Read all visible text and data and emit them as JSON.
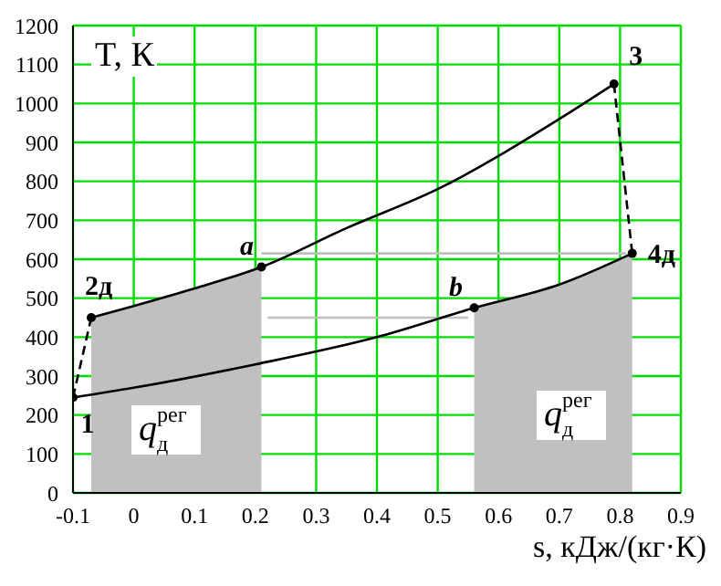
{
  "chart_data": {
    "type": "line",
    "xlabel": "s, кДж/(кг·К)",
    "ylabel": "T, К",
    "xlim": [
      -0.1,
      0.9
    ],
    "xticks": [
      -0.1,
      0,
      0.1,
      0.2,
      0.3,
      0.4,
      0.5,
      0.6,
      0.7,
      0.8,
      0.9
    ],
    "ylim": [
      0,
      1200
    ],
    "yticks": [
      0,
      100,
      200,
      300,
      400,
      500,
      600,
      700,
      800,
      900,
      1000,
      1100,
      1200
    ],
    "grid": true,
    "series": [
      {
        "type": "area",
        "color": "#c0c0c0",
        "x": [
          -0.07,
          0,
          0.1,
          0.21
        ],
        "values": [
          450,
          480,
          525,
          580
        ]
      },
      {
        "type": "area",
        "color": "#c0c0c0",
        "x": [
          0.56,
          0.6,
          0.7,
          0.82
        ],
        "values": [
          475,
          490,
          535,
          615
        ]
      },
      {
        "type": "line",
        "color": "#c0c0c0",
        "line_style": "solid",
        "x": [
          0.21,
          0.81
        ],
        "values": [
          615,
          615
        ]
      },
      {
        "type": "line",
        "color": "#c0c0c0",
        "line_style": "solid",
        "x": [
          0.22,
          0.55
        ],
        "values": [
          450,
          450
        ]
      },
      {
        "color": "#000000",
        "line_style": "solid",
        "x": [
          -0.07,
          0,
          0.1,
          0.21,
          0.35,
          0.5,
          0.7,
          0.79
        ],
        "values": [
          450,
          480,
          525,
          580,
          680,
          780,
          960,
          1050
        ]
      },
      {
        "color": "#000000",
        "line_style": "solid",
        "x": [
          -0.1,
          0,
          0.2,
          0.4,
          0.56,
          0.7,
          0.82
        ],
        "values": [
          245,
          270,
          330,
          400,
          475,
          535,
          615
        ]
      },
      {
        "type": "line",
        "color": "#000000",
        "line_style": "dashed",
        "x": [
          -0.1,
          -0.07
        ],
        "values": [
          245,
          450
        ]
      },
      {
        "type": "line",
        "color": "#000000",
        "line_style": "dashed",
        "x": [
          0.79,
          0.82
        ],
        "values": [
          1050,
          615
        ]
      },
      {
        "type": "scatter",
        "color": "#000000",
        "marker": "circle",
        "x": [
          -0.1,
          -0.07,
          0.21,
          0.79,
          0.82,
          0.56
        ],
        "values": [
          245,
          450,
          580,
          1050,
          615,
          475
        ]
      }
    ],
    "annotations": [
      {
        "text": "1",
        "x": -0.1,
        "y": 245
      },
      {
        "text": "2д",
        "x": -0.07,
        "y": 450
      },
      {
        "text": "a",
        "x": 0.21,
        "y": 580
      },
      {
        "text": "3",
        "x": 0.79,
        "y": 1050
      },
      {
        "text": "4д",
        "x": 0.82,
        "y": 615
      },
      {
        "text": "b",
        "x": 0.56,
        "y": 475
      },
      "q$^{рег}$$_{д}$",
      "q$^{рег}$$_{д}$"
    ]
  }
}
